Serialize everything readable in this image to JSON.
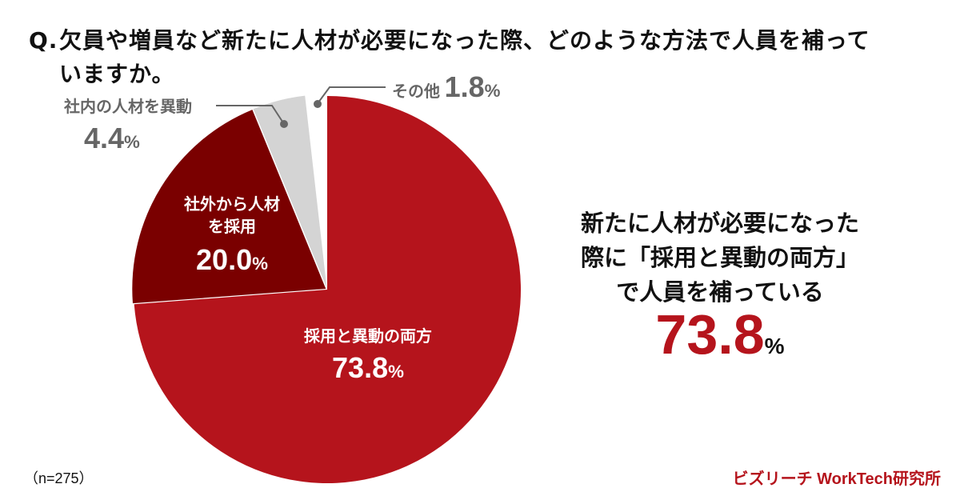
{
  "question": {
    "prefix": "Q.",
    "line1": "欠員や増員など新たに人材が必要になった際、どのような方法で人員を補って",
    "line2": "いますか。"
  },
  "slices": [
    {
      "label": "採用と異動の両方",
      "value": "73.8",
      "pct": "%",
      "color": "#b5141c"
    },
    {
      "label_line1": "社外から人材",
      "label_line2": "を採用",
      "value": "20.0",
      "pct": "%",
      "color": "#7a0000"
    },
    {
      "label": "社内の人材を異動",
      "value": "4.4",
      "pct": "%",
      "color": "#d4d4d4"
    },
    {
      "label": "その他",
      "value": "1.8",
      "pct": "%",
      "color": "#ffffff"
    }
  ],
  "callout": {
    "line1": "新たに人材が必要になった",
    "line2": "際に「採用と異動の両方」",
    "line3": "で人員を補っている",
    "value": "73.8",
    "pct": "%"
  },
  "footer": {
    "n": "（n=275）",
    "brand": "ビズリーチ WorkTech研究所"
  },
  "chart_data": {
    "type": "pie",
    "title": "Q. 欠員や増員など新たに人材が必要になった際、どのような方法で人員を補っていますか。",
    "categories": [
      "採用と異動の両方",
      "社外から人材を採用",
      "社内の人材を異動",
      "その他"
    ],
    "values": [
      73.8,
      20.0,
      4.4,
      1.8
    ],
    "colors": [
      "#b5141c",
      "#7a0000",
      "#d4d4d4",
      "#ffffff"
    ],
    "unit": "%",
    "n": 275,
    "start_angle": "12 o'clock, clockwise",
    "annotation": "新たに人材が必要になった際に「採用と異動の両方」で人員を補っている 73.8%"
  }
}
